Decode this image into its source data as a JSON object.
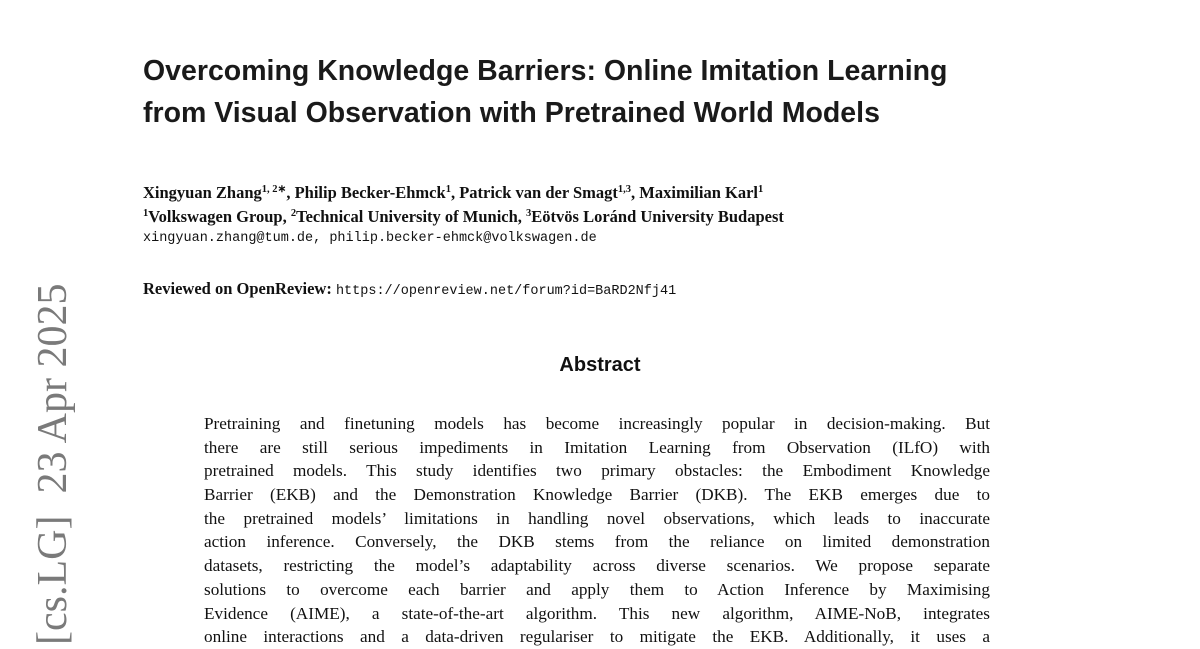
{
  "title": {
    "lines": [
      "Overcoming Knowledge Barriers: Online Imitation Learning",
      "from Visual Observation with Pretrained World Models"
    ]
  },
  "authors": {
    "list": [
      {
        "name": "Xingyuan Zhang",
        "sup": "1, 2∗"
      },
      {
        "name": "Philip Becker-Ehmck",
        "sup": "1"
      },
      {
        "name": "Patrick van der Smagt",
        "sup": "1,3"
      },
      {
        "name": "Maximilian Karl",
        "sup": "1"
      }
    ],
    "affiliations": [
      {
        "sup": "1",
        "name": "Volkswagen Group"
      },
      {
        "sup": "2",
        "name": "Technical University of Munich"
      },
      {
        "sup": "3",
        "name": "Eötvös Loránd University Budapest"
      }
    ],
    "emails": "xingyuan.zhang@tum.de, philip.becker-ehmck@volkswagen.de"
  },
  "review": {
    "label": "Reviewed on OpenReview:",
    "url": "https://openreview.net/forum?id=BaRD2Nfj41"
  },
  "abstract": {
    "heading": "Abstract",
    "lines": [
      "Pretraining and finetuning models has become increasingly popular in decision-making. But",
      "there are still serious impediments in Imitation Learning from Observation (ILfO) with",
      "pretrained models. This study identifies two primary obstacles: the Embodiment Knowledge",
      "Barrier (EKB) and the Demonstration Knowledge Barrier (DKB). The EKB emerges due to",
      "the pretrained models’ limitations in handling novel observations, which leads to inaccurate",
      "action inference. Conversely, the DKB stems from the reliance on limited demonstration",
      "datasets, restricting the model’s adaptability across diverse scenarios. We propose separate",
      "solutions to overcome each barrier and apply them to Action Inference by Maximising",
      "Evidence (AIME), a state-of-the-art algorithm. This new algorithm, AIME-NoB, integrates",
      "online interactions and a data-driven regulariser to mitigate the EKB. Additionally, it uses a"
    ]
  },
  "arxiv_stamp": {
    "category": "[cs.LG]",
    "date": "23 Apr 2025"
  }
}
